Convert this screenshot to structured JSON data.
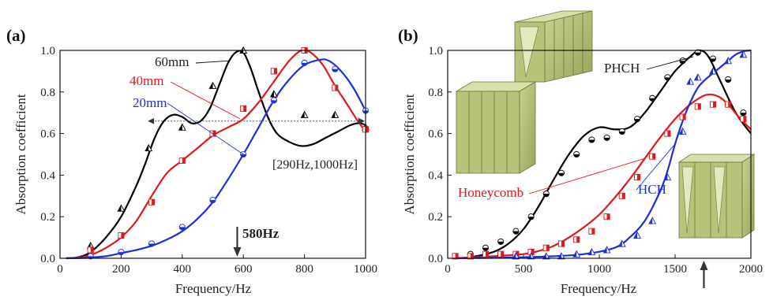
{
  "chart_data": [
    {
      "type": "line",
      "panel_label": "(a)",
      "xlabel": "Frequency/Hz",
      "ylabel": "Absorption coefficient",
      "xlim": [
        0,
        1000
      ],
      "ylim": [
        0,
        1.0
      ],
      "xticks": [
        0,
        200,
        400,
        600,
        800,
        1000
      ],
      "yticks": [
        0.0,
        0.2,
        0.4,
        0.6,
        0.8,
        1.0
      ],
      "grid": false,
      "series": [
        {
          "name": "60mm",
          "color": "#000000",
          "marker": "triangle",
          "curve": [
            [
              20,
              0.0
            ],
            [
              60,
              0.005
            ],
            [
              100,
              0.03
            ],
            [
              150,
              0.1
            ],
            [
              200,
              0.2
            ],
            [
              250,
              0.35
            ],
            [
              280,
              0.46
            ],
            [
              310,
              0.58
            ],
            [
              340,
              0.66
            ],
            [
              370,
              0.69
            ],
            [
              400,
              0.68
            ],
            [
              430,
              0.65
            ],
            [
              460,
              0.66
            ],
            [
              490,
              0.72
            ],
            [
              520,
              0.83
            ],
            [
              550,
              0.94
            ],
            [
              575,
              0.99
            ],
            [
              600,
              0.99
            ],
            [
              625,
              0.91
            ],
            [
              650,
              0.8
            ],
            [
              680,
              0.68
            ],
            [
              710,
              0.6
            ],
            [
              750,
              0.56
            ],
            [
              790,
              0.54
            ],
            [
              830,
              0.55
            ],
            [
              870,
              0.58
            ],
            [
              910,
              0.61
            ],
            [
              950,
              0.64
            ],
            [
              980,
              0.65
            ],
            [
              1000,
              0.64
            ]
          ],
          "points": [
            [
              100,
              0.06
            ],
            [
              200,
              0.24
            ],
            [
              290,
              0.53
            ],
            [
              400,
              0.63
            ],
            [
              500,
              0.83
            ],
            [
              600,
              1.0
            ],
            [
              700,
              0.79
            ],
            [
              800,
              0.69
            ],
            [
              900,
              0.69
            ],
            [
              1000,
              0.63
            ]
          ]
        },
        {
          "name": "40mm",
          "color": "#e0191b",
          "marker": "square",
          "curve": [
            [
              20,
              0.0
            ],
            [
              60,
              0.003
            ],
            [
              100,
              0.015
            ],
            [
              150,
              0.05
            ],
            [
              200,
              0.1
            ],
            [
              250,
              0.18
            ],
            [
              300,
              0.3
            ],
            [
              350,
              0.41
            ],
            [
              400,
              0.47
            ],
            [
              450,
              0.53
            ],
            [
              500,
              0.59
            ],
            [
              550,
              0.63
            ],
            [
              600,
              0.67
            ],
            [
              650,
              0.75
            ],
            [
              700,
              0.85
            ],
            [
              750,
              0.95
            ],
            [
              790,
              1.0
            ],
            [
              820,
              0.99
            ],
            [
              860,
              0.93
            ],
            [
              900,
              0.83
            ],
            [
              940,
              0.74
            ],
            [
              970,
              0.67
            ],
            [
              1000,
              0.61
            ]
          ],
          "points": [
            [
              100,
              0.04
            ],
            [
              200,
              0.11
            ],
            [
              300,
              0.27
            ],
            [
              400,
              0.47
            ],
            [
              500,
              0.6
            ],
            [
              600,
              0.72
            ],
            [
              700,
              0.9
            ],
            [
              800,
              1.0
            ],
            [
              900,
              0.82
            ],
            [
              1000,
              0.62
            ]
          ]
        },
        {
          "name": "20mm",
          "color": "#1f2fd6",
          "marker": "circle",
          "curve": [
            [
              20,
              0.0
            ],
            [
              80,
              0.002
            ],
            [
              150,
              0.01
            ],
            [
              200,
              0.025
            ],
            [
              250,
              0.04
            ],
            [
              300,
              0.06
            ],
            [
              350,
              0.09
            ],
            [
              400,
              0.13
            ],
            [
              450,
              0.19
            ],
            [
              500,
              0.27
            ],
            [
              550,
              0.38
            ],
            [
              600,
              0.5
            ],
            [
              650,
              0.63
            ],
            [
              700,
              0.76
            ],
            [
              750,
              0.86
            ],
            [
              800,
              0.93
            ],
            [
              850,
              0.955
            ],
            [
              880,
              0.95
            ],
            [
              920,
              0.9
            ],
            [
              960,
              0.82
            ],
            [
              1000,
              0.71
            ]
          ],
          "points": [
            [
              100,
              0.01
            ],
            [
              200,
              0.03
            ],
            [
              300,
              0.07
            ],
            [
              400,
              0.15
            ],
            [
              500,
              0.28
            ],
            [
              600,
              0.5
            ],
            [
              700,
              0.76
            ],
            [
              800,
              0.94
            ],
            [
              900,
              0.91
            ],
            [
              1000,
              0.71
            ]
          ]
        }
      ],
      "annotations": {
        "range_label": "[290Hz,1000Hz]",
        "range": [
          290,
          1000
        ],
        "range_level": 0.66,
        "arrow_label": "580Hz",
        "arrow_x": 580
      }
    },
    {
      "type": "line",
      "panel_label": "(b)",
      "xlabel": "Frequency/Hz",
      "ylabel": "Absorption coefficient",
      "xlim": [
        0,
        2000
      ],
      "ylim": [
        0,
        1.0
      ],
      "xticks": [
        0,
        500,
        1000,
        1500,
        2000
      ],
      "yticks": [
        0.0,
        0.2,
        0.4,
        0.6,
        0.8,
        1.0
      ],
      "grid": false,
      "series": [
        {
          "name": "PHCH",
          "color": "#000000",
          "marker": "circle",
          "curve": [
            [
              50,
              0.0
            ],
            [
              150,
              0.005
            ],
            [
              300,
              0.03
            ],
            [
              400,
              0.07
            ],
            [
              500,
              0.14
            ],
            [
              600,
              0.25
            ],
            [
              700,
              0.38
            ],
            [
              800,
              0.5
            ],
            [
              900,
              0.59
            ],
            [
              1000,
              0.63
            ],
            [
              1100,
              0.62
            ],
            [
              1200,
              0.63
            ],
            [
              1300,
              0.7
            ],
            [
              1400,
              0.8
            ],
            [
              1500,
              0.9
            ],
            [
              1600,
              0.97
            ],
            [
              1660,
              1.0
            ],
            [
              1720,
              0.97
            ],
            [
              1800,
              0.85
            ],
            [
              1900,
              0.7
            ],
            [
              2000,
              0.6
            ]
          ],
          "points": [
            [
              150,
              0.02
            ],
            [
              250,
              0.05
            ],
            [
              350,
              0.08
            ],
            [
              450,
              0.13
            ],
            [
              550,
              0.2
            ],
            [
              650,
              0.31
            ],
            [
              750,
              0.41
            ],
            [
              850,
              0.5
            ],
            [
              950,
              0.57
            ],
            [
              1050,
              0.58
            ],
            [
              1150,
              0.61
            ],
            [
              1250,
              0.67
            ],
            [
              1350,
              0.77
            ],
            [
              1450,
              0.87
            ],
            [
              1550,
              0.95
            ],
            [
              1650,
              0.99
            ],
            [
              1750,
              0.96
            ],
            [
              1850,
              0.86
            ],
            [
              1950,
              0.7
            ]
          ]
        },
        {
          "name": "Honeycomb",
          "color": "#e0191b",
          "marker": "square",
          "curve": [
            [
              50,
              0.0
            ],
            [
              300,
              0.01
            ],
            [
              500,
              0.02
            ],
            [
              600,
              0.035
            ],
            [
              700,
              0.06
            ],
            [
              800,
              0.1
            ],
            [
              900,
              0.15
            ],
            [
              1000,
              0.21
            ],
            [
              1100,
              0.29
            ],
            [
              1200,
              0.38
            ],
            [
              1300,
              0.48
            ],
            [
              1400,
              0.58
            ],
            [
              1500,
              0.67
            ],
            [
              1600,
              0.74
            ],
            [
              1700,
              0.785
            ],
            [
              1780,
              0.78
            ],
            [
              1850,
              0.74
            ],
            [
              1920,
              0.68
            ],
            [
              2000,
              0.62
            ]
          ],
          "points": [
            [
              50,
              0.01
            ],
            [
              150,
              0.01
            ],
            [
              250,
              0.02
            ],
            [
              350,
              0.02
            ],
            [
              450,
              0.02
            ],
            [
              550,
              0.03
            ],
            [
              650,
              0.05
            ],
            [
              750,
              0.07
            ],
            [
              850,
              0.09
            ],
            [
              950,
              0.13
            ],
            [
              1050,
              0.2
            ],
            [
              1150,
              0.3
            ],
            [
              1250,
              0.39
            ],
            [
              1350,
              0.49
            ],
            [
              1450,
              0.6
            ],
            [
              1550,
              0.68
            ],
            [
              1650,
              0.73
            ],
            [
              1750,
              0.74
            ],
            [
              1850,
              0.74
            ],
            [
              1950,
              0.67
            ]
          ]
        },
        {
          "name": "HCH",
          "color": "#1f2fd6",
          "marker": "triangle",
          "curve": [
            [
              50,
              0.0
            ],
            [
              500,
              0.005
            ],
            [
              700,
              0.01
            ],
            [
              900,
              0.02
            ],
            [
              1100,
              0.05
            ],
            [
              1200,
              0.1
            ],
            [
              1300,
              0.18
            ],
            [
              1400,
              0.32
            ],
            [
              1450,
              0.42
            ],
            [
              1500,
              0.55
            ],
            [
              1550,
              0.66
            ],
            [
              1600,
              0.75
            ],
            [
              1650,
              0.82
            ],
            [
              1700,
              0.86
            ],
            [
              1750,
              0.89
            ],
            [
              1800,
              0.92
            ],
            [
              1850,
              0.95
            ],
            [
              1900,
              0.98
            ],
            [
              1950,
              0.995
            ],
            [
              2000,
              1.0
            ]
          ],
          "points": [
            [
              450,
              0.01
            ],
            [
              550,
              0.01
            ],
            [
              650,
              0.01
            ],
            [
              750,
              0.01
            ],
            [
              850,
              0.02
            ],
            [
              950,
              0.03
            ],
            [
              1050,
              0.04
            ],
            [
              1150,
              0.07
            ],
            [
              1250,
              0.11
            ],
            [
              1350,
              0.18
            ],
            [
              1450,
              0.39
            ],
            [
              1550,
              0.61
            ],
            [
              1600,
              0.85
            ],
            [
              1650,
              0.87
            ],
            [
              1750,
              0.9
            ],
            [
              1850,
              0.95
            ],
            [
              1950,
              0.98
            ]
          ]
        }
      ],
      "annotations": {
        "arrow_x": 1690
      }
    }
  ]
}
